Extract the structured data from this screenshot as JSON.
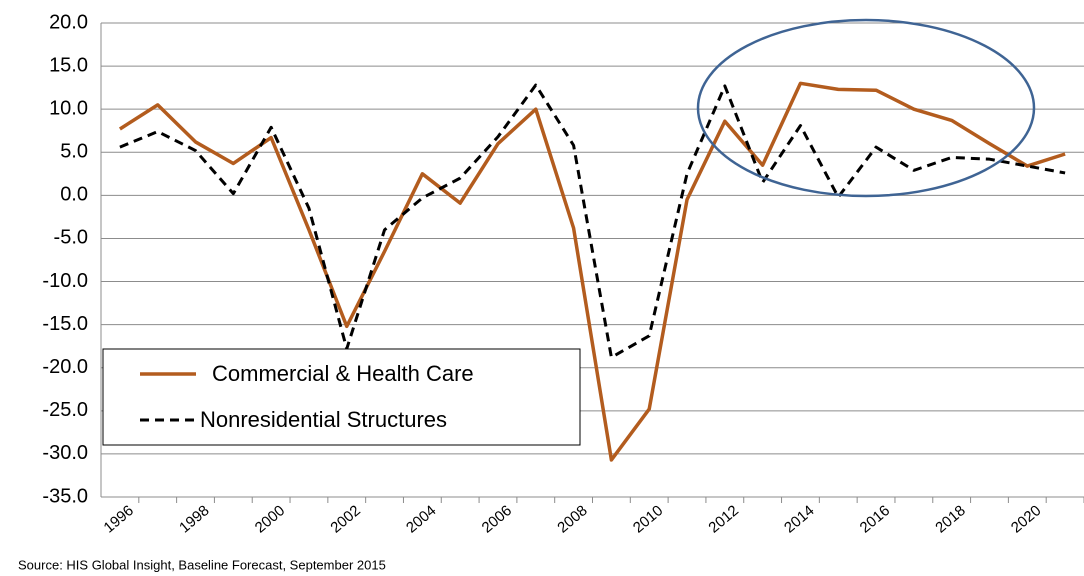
{
  "chart_data": {
    "type": "line",
    "categories": [
      "1996",
      null,
      "1998",
      null,
      "2000",
      null,
      "2002",
      null,
      "2004",
      null,
      "2006",
      null,
      "2008",
      null,
      "2010",
      null,
      "2012",
      null,
      "2014",
      null,
      "2016",
      null,
      "2018",
      null,
      "2020",
      null
    ],
    "series": [
      {
        "name": "Commercial & Health Care",
        "color": "#b35c1e",
        "dash": false,
        "values": [
          7.7,
          10.5,
          6.2,
          3.7,
          6.7,
          -4,
          -15.2,
          -6.5,
          2.5,
          -0.9,
          6,
          10,
          -3.8,
          -30.7,
          -24.8,
          -0.5,
          8.6,
          3.5,
          13,
          12.3,
          12.2,
          10,
          8.7,
          6,
          3.4,
          4.8
        ]
      },
      {
        "name": "Nonresidential Structures",
        "color": "#000000",
        "dash": true,
        "values": [
          5.6,
          7.4,
          5.2,
          0.2,
          7.9,
          -1.5,
          -17.8,
          -4,
          -0.3,
          2,
          6.8,
          12.8,
          5.8,
          -18.8,
          -16.3,
          2.5,
          12.7,
          1.5,
          8.1,
          -0.2,
          5.6,
          2.9,
          4.4,
          4.2,
          3.4,
          2.6
        ]
      }
    ],
    "ylim": [
      -35,
      20
    ],
    "yticks": [
      {
        "value": -35,
        "label": "-35.0"
      },
      {
        "value": -30,
        "label": "-30.0"
      },
      {
        "value": -25,
        "label": "-25.0"
      },
      {
        "value": -20,
        "label": "-20.0"
      },
      {
        "value": -15,
        "label": "-15.0"
      },
      {
        "value": -10,
        "label": "-10.0"
      },
      {
        "value": -5,
        "label": "-5.0"
      },
      {
        "value": 0,
        "label": "0.0"
      },
      {
        "value": 5,
        "label": "5.0"
      },
      {
        "value": 10,
        "label": "10.0"
      },
      {
        "value": 15,
        "label": "15.0"
      },
      {
        "value": 20,
        "label": "20.0"
      }
    ],
    "grid": true,
    "source": "Source:  HIS Global Insight, Baseline Forecast, September 2015"
  }
}
